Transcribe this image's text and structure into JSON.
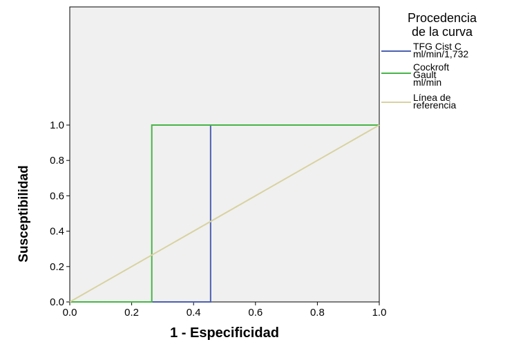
{
  "chart_data": {
    "type": "line",
    "title": "",
    "xlabel": "1 - Especificidad",
    "ylabel": "Susceptibilidad",
    "xlim": [
      0,
      1
    ],
    "ylim": [
      0,
      1
    ],
    "x_ticks": [
      "0.0",
      "0.2",
      "0.4",
      "0.6",
      "0.8",
      "1.0"
    ],
    "y_ticks": [
      "0.0",
      "0.2",
      "0.4",
      "0.6",
      "0.8",
      "1.0"
    ],
    "legend": {
      "title_lines": [
        "Procedencia",
        "de la curva"
      ],
      "placement": "right"
    },
    "series": [
      {
        "name_lines": [
          "TFG Cist C",
          "ml/min/1,732"
        ],
        "color": "#4a5fb0",
        "x": [
          0,
          0.455,
          0.455,
          1
        ],
        "y": [
          0,
          0,
          1,
          1
        ]
      },
      {
        "name_lines": [
          "Cockroft",
          "Gault",
          "ml/min"
        ],
        "color": "#46b446",
        "x": [
          0,
          0.265,
          0.265,
          1
        ],
        "y": [
          0,
          0,
          1,
          1
        ]
      },
      {
        "name_lines": [
          "Línea de",
          "referencia"
        ],
        "color": "#d8d2a0",
        "x": [
          0,
          1
        ],
        "y": [
          0,
          1
        ]
      }
    ]
  }
}
